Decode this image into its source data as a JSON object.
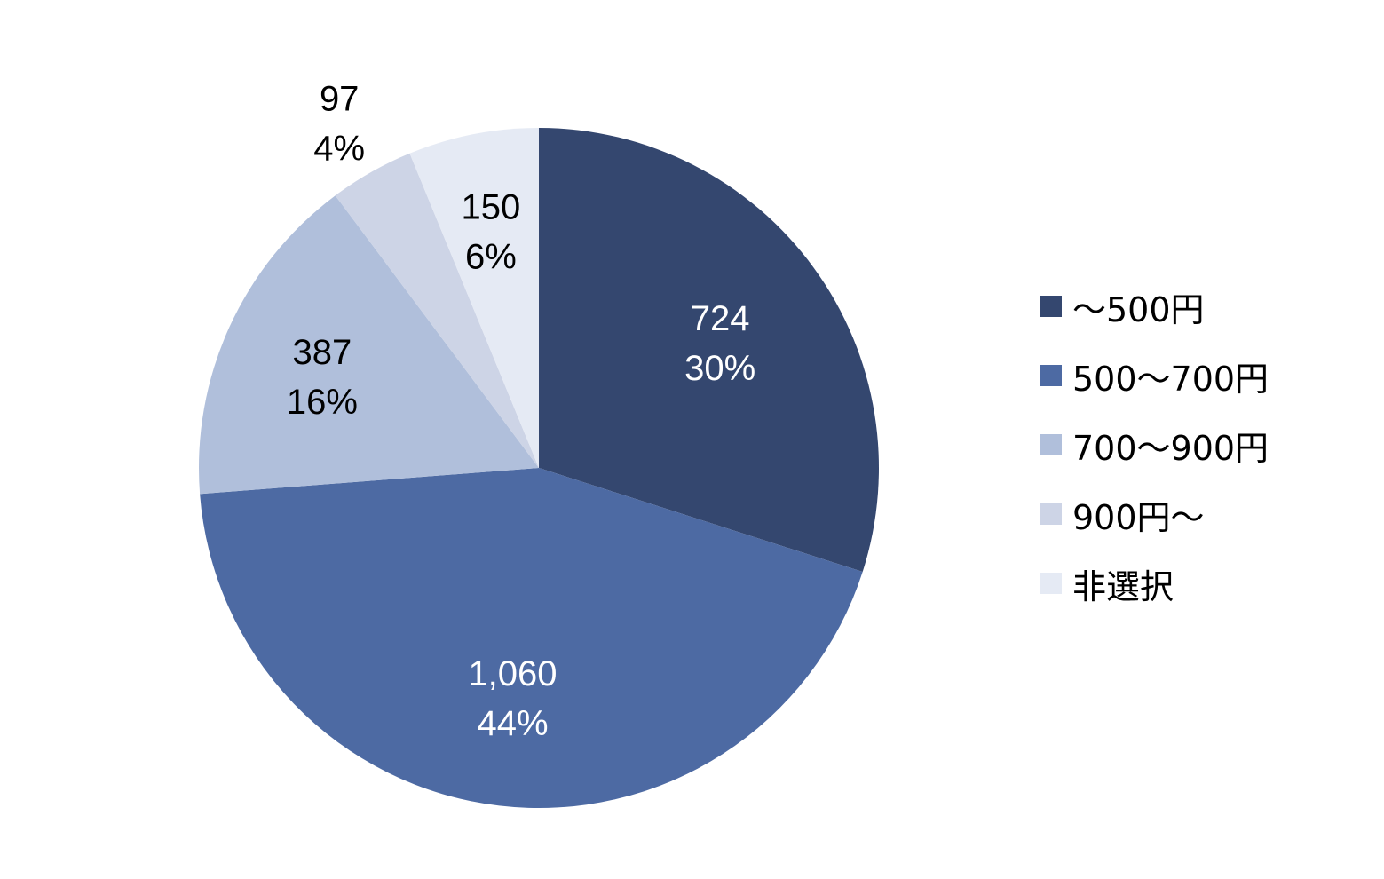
{
  "chart_data": {
    "type": "pie",
    "title": "",
    "categories": [
      "～500円",
      "500～700円",
      "700～900円",
      "900円～",
      "非選択"
    ],
    "values": [
      724,
      1060,
      387,
      97,
      150
    ],
    "value_labels": [
      "724",
      "1,060",
      "387",
      "97",
      "150"
    ],
    "percent_labels": [
      "30%",
      "44%",
      "16%",
      "4%",
      "6%"
    ],
    "colors": [
      "#34476F",
      "#4D6AA3",
      "#B0BFDB",
      "#CDD4E6",
      "#E5EAF4"
    ],
    "label_colors": [
      "#ffffff",
      "#ffffff",
      "#000000",
      "#000000",
      "#000000"
    ],
    "start": "12 o'clock",
    "direction": "clockwise",
    "legend_position": "right"
  }
}
